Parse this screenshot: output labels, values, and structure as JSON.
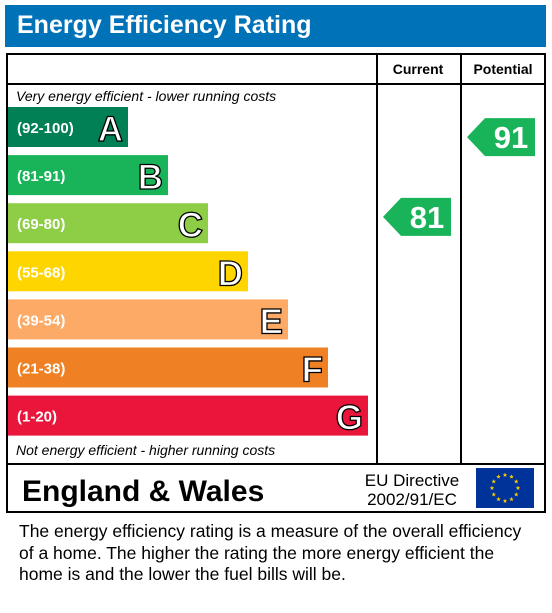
{
  "title": "Energy Efficiency Rating",
  "chart_data": {
    "type": "bar",
    "columns": {
      "current": "Current",
      "potential": "Potential"
    },
    "top_note": "Very energy efficient - lower running costs",
    "bottom_note": "Not energy efficient - higher running costs",
    "bands": [
      {
        "letter": "A",
        "range": "(92-100)",
        "color": "#008054"
      },
      {
        "letter": "B",
        "range": "(81-91)",
        "color": "#19b459"
      },
      {
        "letter": "C",
        "range": "(69-80)",
        "color": "#8dce46"
      },
      {
        "letter": "D",
        "range": "(55-68)",
        "color": "#ffd500"
      },
      {
        "letter": "E",
        "range": "(39-54)",
        "color": "#fcaa65"
      },
      {
        "letter": "F",
        "range": "(21-38)",
        "color": "#ef8023"
      },
      {
        "letter": "G",
        "range": "(1-20)",
        "color": "#e9153b"
      }
    ],
    "current": {
      "value": 81,
      "band": "B",
      "color": "#19b459"
    },
    "potential": {
      "value": 91,
      "band": "B",
      "color": "#19b459"
    }
  },
  "footer": {
    "region": "England & Wales",
    "directive_line1": "EU Directive",
    "directive_line2": "2002/91/EC",
    "flag_icon": "eu-flag-icon"
  },
  "description": "The energy efficiency rating is a measure of the overall efficiency of a home.  The higher the rating the more energy efficient the home is and the lower the fuel bills will be."
}
